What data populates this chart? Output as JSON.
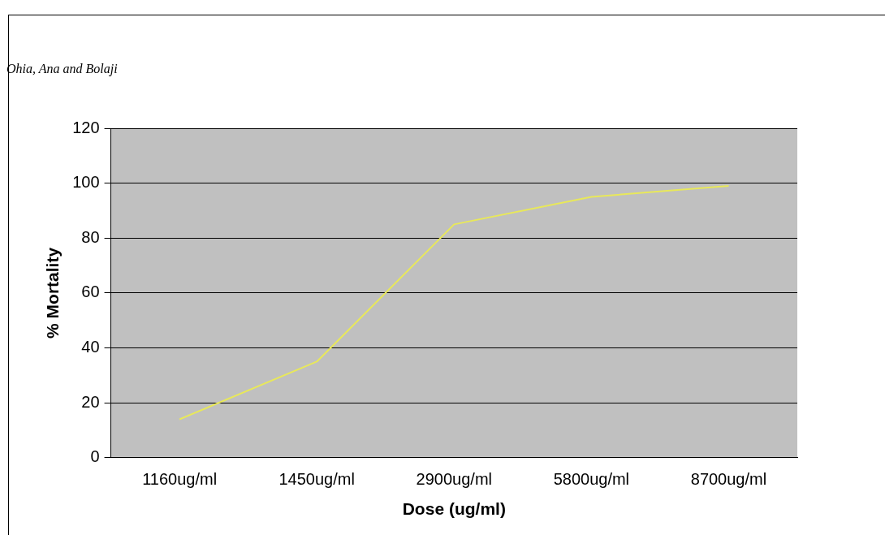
{
  "chart_data": {
    "type": "line",
    "xlabel": "Dose (ug/ml)",
    "ylabel": "% Mortality",
    "annotations": [
      "Ohia, Ana and Bolaji"
    ],
    "categories": [
      "1160ug/ml",
      "1450ug/ml",
      "2900ug/ml",
      "5800ug/ml",
      "8700ug/ml"
    ],
    "series": [
      {
        "color": "#e8e85a",
        "values": [
          14,
          35,
          85,
          95,
          99
        ]
      }
    ],
    "ylim": [
      0,
      120
    ],
    "yticks": [
      0,
      20,
      40,
      60,
      80,
      100,
      120
    ],
    "grid": "y",
    "legend": false,
    "marker": "none",
    "line_style": "solid"
  }
}
